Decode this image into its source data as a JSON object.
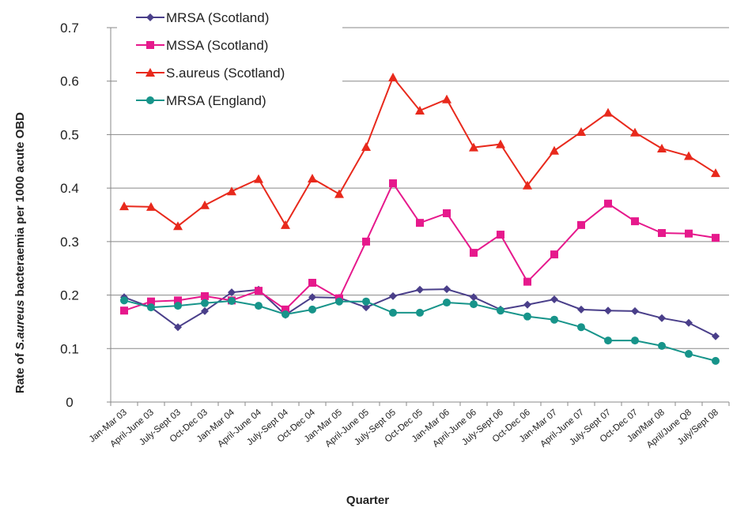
{
  "chart_data": {
    "type": "line",
    "ylabel": [
      "Rate of ",
      "S.aureus",
      " bacteraemia per 1000 acute OBD"
    ],
    "xlabel": "Quarter",
    "categories": [
      "Jan-Mar 03",
      "April-June 03",
      "July-Sept 03",
      "Oct-Dec 03",
      "Jan-Mar 04",
      "April-June 04",
      "July-Sept 04",
      "Oct-Dec 04",
      "Jan-Mar 05",
      "April-June 05",
      "July-Sept 05",
      "Oct-Dec 05",
      "Jan-Mar 06",
      "April-June 06",
      "July-Sept 06",
      "Oct-Dec 06",
      "Jan-Mar 07",
      "April-June 07",
      "July-Sept 07",
      "Oct-Dec 07",
      "Jan/Mar 08",
      "April/June Q8",
      "July/Sept 08"
    ],
    "series": [
      {
        "name": "MRSA (Scotland)",
        "color": "#4a3f8a",
        "marker": "diamond",
        "values": [
          0.196,
          0.177,
          0.14,
          0.17,
          0.205,
          0.21,
          0.163,
          0.196,
          0.195,
          0.177,
          0.198,
          0.21,
          0.211,
          0.196,
          0.173,
          0.182,
          0.192,
          0.173,
          0.171,
          0.17,
          0.157,
          0.148,
          0.123
        ]
      },
      {
        "name": "MSSA (Scotland)",
        "color": "#e6198c",
        "marker": "square",
        "values": [
          0.171,
          0.188,
          0.19,
          0.198,
          0.19,
          0.208,
          0.173,
          0.223,
          0.194,
          0.3,
          0.409,
          0.335,
          0.353,
          0.279,
          0.313,
          0.225,
          0.276,
          0.331,
          0.371,
          0.338,
          0.316,
          0.315,
          0.307
        ]
      },
      {
        "name": "S.aureus (Scotland)",
        "color": "#e8291c",
        "marker": "triangle",
        "values": [
          0.366,
          0.365,
          0.329,
          0.368,
          0.394,
          0.417,
          0.331,
          0.418,
          0.389,
          0.477,
          0.607,
          0.545,
          0.566,
          0.476,
          0.482,
          0.405,
          0.47,
          0.505,
          0.541,
          0.504,
          0.474,
          0.46,
          0.428
        ]
      },
      {
        "name": "MRSA (England)",
        "color": "#17948a",
        "marker": "circle",
        "values": [
          0.19,
          0.177,
          0.18,
          0.185,
          0.189,
          0.18,
          0.164,
          0.173,
          0.188,
          0.188,
          0.167,
          0.167,
          0.186,
          0.183,
          0.171,
          0.16,
          0.154,
          0.14,
          0.115,
          0.115,
          0.105,
          0.09,
          0.077
        ]
      }
    ],
    "ylim": [
      0,
      0.7
    ],
    "yticks": [
      0,
      0.1,
      0.2,
      0.3,
      0.4,
      0.5,
      0.6,
      0.7
    ],
    "grid": true,
    "legend": "upper left"
  }
}
